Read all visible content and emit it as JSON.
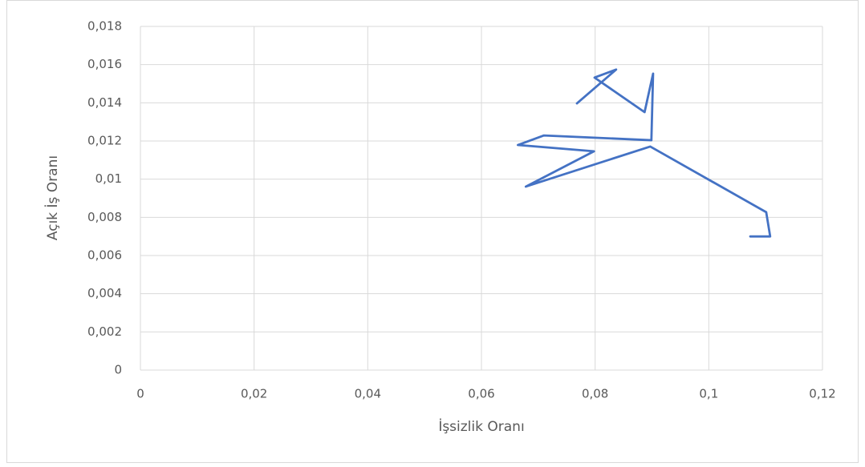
{
  "chart_data": {
    "type": "line",
    "ylabel": "Açık İş Oranı",
    "xlabel": "İşsizlik Oranı",
    "x": [
      0.1073,
      0.1108,
      0.1101,
      0.0897,
      0.0678,
      0.0798,
      0.0664,
      0.071,
      0.0899,
      0.0902,
      0.0887,
      0.0799,
      0.0837,
      0.0768
    ],
    "values": [
      0.007,
      0.007,
      0.00827,
      0.01171,
      0.00961,
      0.01146,
      0.01179,
      0.01229,
      0.01204,
      0.01553,
      0.01351,
      0.01532,
      0.01574,
      0.01397
    ],
    "color": "#4472c4",
    "xlim": [
      0,
      0.12
    ],
    "xticks": [
      0,
      {
        "value": 0.02,
        "label": "0,02"
      },
      {
        "value": 0.04,
        "label": "0,04"
      },
      {
        "value": 0.06,
        "label": "0,06"
      },
      {
        "value": 0.08,
        "label": "0,08"
      },
      {
        "value": 0.1,
        "label": "0,1"
      },
      {
        "value": 0.12,
        "label": "0,12"
      }
    ],
    "ylim": [
      0,
      0.018
    ],
    "yticks": [
      0,
      {
        "value": 0.002,
        "label": "0,002"
      },
      {
        "value": 0.004,
        "label": "0,004"
      },
      {
        "value": 0.006,
        "label": "0,006"
      },
      {
        "value": 0.008,
        "label": "0,008"
      },
      {
        "value": 0.01,
        "label": "0,01"
      },
      {
        "value": 0.012,
        "label": "0,012"
      },
      {
        "value": 0.014,
        "label": "0,014"
      },
      {
        "value": 0.016,
        "label": "0,016"
      },
      {
        "value": 0.018,
        "label": "0,018"
      }
    ],
    "grid": true
  }
}
